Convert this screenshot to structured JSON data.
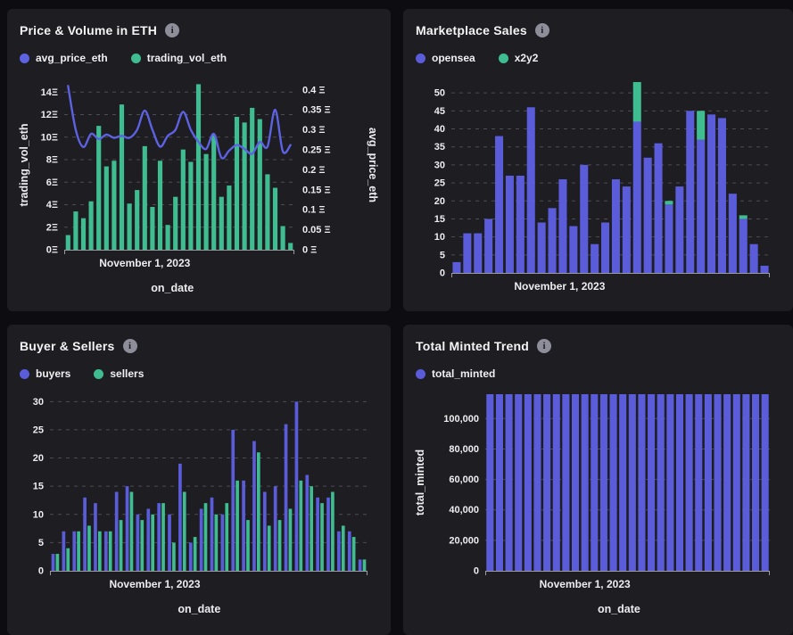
{
  "icons": {
    "info_glyph": "i"
  },
  "colors": {
    "background": "#0d0d11",
    "card_background": "#1d1d22",
    "purple": "#5a5cd9",
    "green": "#3fbd90",
    "line_purple": "#5d62e2",
    "grid": "#4c4c54",
    "text": "#f0f0f3"
  },
  "cards": [
    {
      "id": "price-volume",
      "title": "Price & Volume in ETH",
      "legend": [
        {
          "label": "avg_price_eth",
          "color": "#5d62e2"
        },
        {
          "label": "trading_vol_eth",
          "color": "#3fbd90"
        }
      ],
      "chart_data": {
        "type": "combo",
        "x_tick_label": "November 1, 2023",
        "xlabel": "on_date",
        "grid": true,
        "left_axis": {
          "label": "trading_vol_eth",
          "lim": [
            0,
            15.05
          ],
          "ticks": [
            {
              "v": 0,
              "label": "0Ξ"
            },
            {
              "v": 2,
              "label": "2Ξ"
            },
            {
              "v": 4,
              "label": "4Ξ"
            },
            {
              "v": 6,
              "label": "6Ξ"
            },
            {
              "v": 8,
              "label": "8Ξ"
            },
            {
              "v": 10,
              "label": "10Ξ"
            },
            {
              "v": 12,
              "label": "12Ξ"
            },
            {
              "v": 14,
              "label": "14Ξ"
            }
          ]
        },
        "right_axis": {
          "label": "avg_price_eth",
          "lim": [
            0,
            0.424
          ],
          "ticks": [
            {
              "v": 0,
              "label": "0 Ξ"
            },
            {
              "v": 0.05,
              "label": "0.05 Ξ"
            },
            {
              "v": 0.1,
              "label": "0.1 Ξ"
            },
            {
              "v": 0.15,
              "label": "0.15 Ξ"
            },
            {
              "v": 0.2,
              "label": "0.2 Ξ"
            },
            {
              "v": 0.25,
              "label": "0.25 Ξ"
            },
            {
              "v": 0.3,
              "label": "0.3 Ξ"
            },
            {
              "v": 0.35,
              "label": "0.35 Ξ"
            },
            {
              "v": 0.4,
              "label": "0.4 Ξ"
            }
          ]
        },
        "series": [
          {
            "name": "trading_vol_eth",
            "kind": "bar",
            "axis": "left",
            "color": "#3fbd90",
            "values": [
              1.3,
              3.4,
              2.8,
              4.3,
              11,
              7.4,
              7.9,
              12.9,
              4.1,
              5.3,
              9.2,
              3.8,
              7.9,
              2.2,
              4.7,
              8.9,
              7.8,
              14.7,
              8.5,
              10.2,
              4.7,
              5.7,
              11.8,
              11.3,
              12.6,
              11.6,
              6.7,
              5.5,
              2.1,
              0.6
            ]
          },
          {
            "name": "avg_price_eth",
            "kind": "line",
            "axis": "right",
            "color": "#5d62e2",
            "values": [
              0.41,
              0.3,
              0.257,
              0.29,
              0.277,
              0.288,
              0.28,
              0.285,
              0.28,
              0.3,
              0.348,
              0.3,
              0.258,
              0.285,
              0.3,
              0.345,
              0.3,
              0.27,
              0.252,
              0.29,
              0.23,
              0.248,
              0.262,
              0.252,
              0.24,
              0.27,
              0.258,
              0.35,
              0.246,
              0.262
            ]
          }
        ]
      }
    },
    {
      "id": "marketplace-sales",
      "title": "Marketplace Sales",
      "legend": [
        {
          "label": "opensea",
          "color": "#5a5cd9"
        },
        {
          "label": "x2y2",
          "color": "#3fbd90"
        }
      ],
      "chart_data": {
        "type": "stacked-bar",
        "x_tick_label": "November 1, 2023",
        "grid": true,
        "left_axis": {
          "lim": [
            0,
            53.5
          ],
          "ticks": [
            {
              "v": 0,
              "label": "0"
            },
            {
              "v": 5,
              "label": "5"
            },
            {
              "v": 10,
              "label": "10"
            },
            {
              "v": 15,
              "label": "15"
            },
            {
              "v": 20,
              "label": "20"
            },
            {
              "v": 25,
              "label": "25"
            },
            {
              "v": 30,
              "label": "30"
            },
            {
              "v": 35,
              "label": "35"
            },
            {
              "v": 40,
              "label": "40"
            },
            {
              "v": 45,
              "label": "45"
            },
            {
              "v": 50,
              "label": "50"
            }
          ]
        },
        "series": [
          {
            "name": "opensea",
            "kind": "bar",
            "color": "#5a5cd9",
            "values": [
              3,
              11,
              11,
              15,
              38,
              27,
              27,
              46,
              14,
              18,
              26,
              13,
              30,
              8,
              14,
              26,
              24,
              42,
              32,
              36,
              19,
              24,
              45,
              37,
              44,
              43,
              22,
              15,
              8,
              2
            ]
          },
          {
            "name": "x2y2",
            "kind": "bar",
            "color": "#3fbd90",
            "values": [
              0,
              0,
              0,
              0,
              0,
              0,
              0,
              0,
              0,
              0,
              0,
              0,
              0,
              0,
              0,
              0,
              0,
              11,
              0,
              0,
              1,
              0,
              0,
              8,
              0,
              0,
              0,
              1,
              0,
              0
            ]
          }
        ]
      }
    },
    {
      "id": "buyers-sellers",
      "title": "Buyer & Sellers",
      "legend": [
        {
          "label": "buyers",
          "color": "#5a5cd9"
        },
        {
          "label": "sellers",
          "color": "#3fbd90"
        }
      ],
      "chart_data": {
        "type": "grouped-bar",
        "x_tick_label": "November 1, 2023",
        "xlabel": "on_date",
        "grid": true,
        "left_axis": {
          "lim": [
            0,
            31
          ],
          "ticks": [
            {
              "v": 0,
              "label": "0"
            },
            {
              "v": 5,
              "label": "5"
            },
            {
              "v": 10,
              "label": "10"
            },
            {
              "v": 15,
              "label": "15"
            },
            {
              "v": 20,
              "label": "20"
            },
            {
              "v": 25,
              "label": "25"
            },
            {
              "v": 30,
              "label": "30"
            }
          ]
        },
        "series": [
          {
            "name": "buyers",
            "kind": "bar",
            "color": "#5a5cd9",
            "values": [
              3,
              7,
              7,
              13,
              12,
              7,
              14,
              15,
              10,
              11,
              12,
              10,
              19,
              5,
              11,
              13,
              10,
              25,
              16,
              23,
              14,
              15,
              26,
              30,
              17,
              13,
              13,
              7,
              7,
              2
            ]
          },
          {
            "name": "sellers",
            "kind": "bar",
            "color": "#3fbd90",
            "values": [
              3,
              4,
              7,
              8,
              7,
              7,
              9,
              14,
              9,
              10,
              12,
              5,
              14,
              6,
              12,
              10,
              12,
              16,
              9,
              21,
              8,
              9,
              11,
              16,
              15,
              12,
              14,
              8,
              6,
              2
            ]
          }
        ]
      }
    },
    {
      "id": "total-minted",
      "title": "Total Minted Trend",
      "legend": [
        {
          "label": "total_minted",
          "color": "#5a5cd9"
        }
      ],
      "chart_data": {
        "type": "bar",
        "x_tick_label": "November 1, 2023",
        "xlabel": "on_date",
        "grid": true,
        "left_axis": {
          "label": "total_minted",
          "lim": [
            0,
            116000
          ],
          "ticks": [
            {
              "v": 0,
              "label": "0"
            },
            {
              "v": 20000,
              "label": "20,000"
            },
            {
              "v": 40000,
              "label": "40,000"
            },
            {
              "v": 60000,
              "label": "60,000"
            },
            {
              "v": 80000,
              "label": "80,000"
            },
            {
              "v": 100000,
              "label": "100,000"
            }
          ]
        },
        "series": [
          {
            "name": "total_minted",
            "kind": "bar",
            "color": "#5a5cd9",
            "values": [
              116000,
              116000,
              116000,
              116000,
              116000,
              116000,
              116000,
              116000,
              116000,
              116000,
              116000,
              116000,
              116000,
              116000,
              116000,
              116000,
              116000,
              116000,
              116000,
              116000,
              116000,
              116000,
              116000,
              116000,
              116000,
              116000,
              116000,
              116000,
              116000,
              116000
            ]
          }
        ]
      }
    }
  ]
}
